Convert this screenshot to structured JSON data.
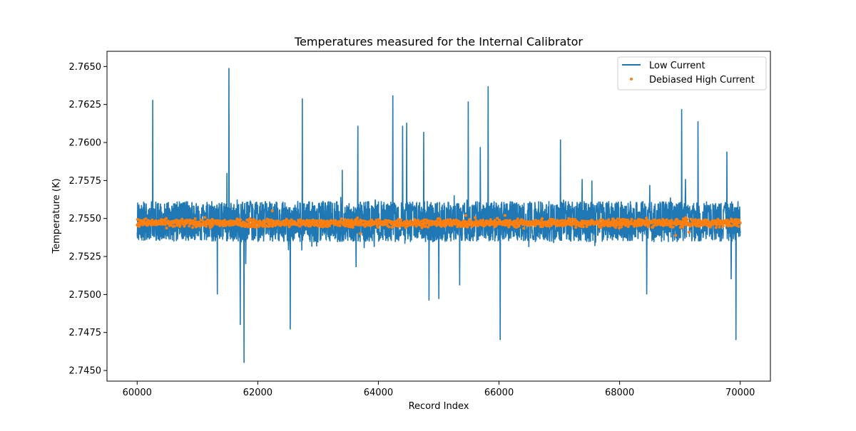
{
  "chart_data": {
    "type": "line",
    "title": "Temperatures measured for the Internal Calibrator",
    "xlabel": "Record Index",
    "ylabel": "Temperature (K)",
    "xlim": [
      59500,
      70500
    ],
    "ylim": [
      2.7443,
      2.766
    ],
    "x_ticks": [
      60000,
      62000,
      64000,
      66000,
      68000,
      70000
    ],
    "x_tick_labels": [
      "60000",
      "62000",
      "64000",
      "66000",
      "68000",
      "70000"
    ],
    "y_ticks": [
      2.745,
      2.7475,
      2.75,
      2.7525,
      2.755,
      2.7575,
      2.76,
      2.7625,
      2.765
    ],
    "y_tick_labels": [
      "2.7450",
      "2.7475",
      "2.7500",
      "2.7525",
      "2.7550",
      "2.7575",
      "2.7600",
      "2.7625",
      "2.7650"
    ],
    "grid": false,
    "legend_position": "upper-right",
    "series": [
      {
        "name": "Low Current",
        "kind": "line",
        "color": "#1f77b4",
        "x_range": [
          60000,
          70000
        ],
        "baseline": 2.7548,
        "band": [
          2.7535,
          2.7562
        ],
        "spikes": [
          {
            "x": 60260,
            "y": 2.7628
          },
          {
            "x": 61330,
            "y": 2.75
          },
          {
            "x": 61490,
            "y": 2.758
          },
          {
            "x": 61520,
            "y": 2.7649
          },
          {
            "x": 61710,
            "y": 2.748
          },
          {
            "x": 61770,
            "y": 2.7455
          },
          {
            "x": 61800,
            "y": 2.752
          },
          {
            "x": 62540,
            "y": 2.7477
          },
          {
            "x": 62740,
            "y": 2.7629
          },
          {
            "x": 63400,
            "y": 2.7582
          },
          {
            "x": 63660,
            "y": 2.7611
          },
          {
            "x": 63630,
            "y": 2.7518
          },
          {
            "x": 64240,
            "y": 2.7631
          },
          {
            "x": 64400,
            "y": 2.7611
          },
          {
            "x": 64470,
            "y": 2.7613
          },
          {
            "x": 64750,
            "y": 2.7607
          },
          {
            "x": 64840,
            "y": 2.7496
          },
          {
            "x": 65000,
            "y": 2.7497
          },
          {
            "x": 65350,
            "y": 2.7506
          },
          {
            "x": 65490,
            "y": 2.7627
          },
          {
            "x": 65690,
            "y": 2.7597
          },
          {
            "x": 65820,
            "y": 2.7637
          },
          {
            "x": 66020,
            "y": 2.747
          },
          {
            "x": 67020,
            "y": 2.7602
          },
          {
            "x": 67380,
            "y": 2.7576
          },
          {
            "x": 67540,
            "y": 2.7575
          },
          {
            "x": 68450,
            "y": 2.75
          },
          {
            "x": 68500,
            "y": 2.7572
          },
          {
            "x": 69030,
            "y": 2.7622
          },
          {
            "x": 69090,
            "y": 2.7576
          },
          {
            "x": 69300,
            "y": 2.7614
          },
          {
            "x": 69780,
            "y": 2.7594
          },
          {
            "x": 69850,
            "y": 2.751
          },
          {
            "x": 69930,
            "y": 2.747
          }
        ]
      },
      {
        "name": "Debiased High Current",
        "kind": "scatter",
        "color": "#ff7f0e",
        "x_range": [
          60000,
          70000
        ],
        "baseline": 2.7547,
        "band": [
          2.7542,
          2.7551
        ],
        "outliers": [
          {
            "x": 62240,
            "y": 2.7555
          },
          {
            "x": 63700,
            "y": 2.754
          },
          {
            "x": 65450,
            "y": 2.7552
          },
          {
            "x": 66100,
            "y": 2.7552
          },
          {
            "x": 68930,
            "y": 2.7539
          },
          {
            "x": 69150,
            "y": 2.7541
          }
        ]
      }
    ]
  }
}
